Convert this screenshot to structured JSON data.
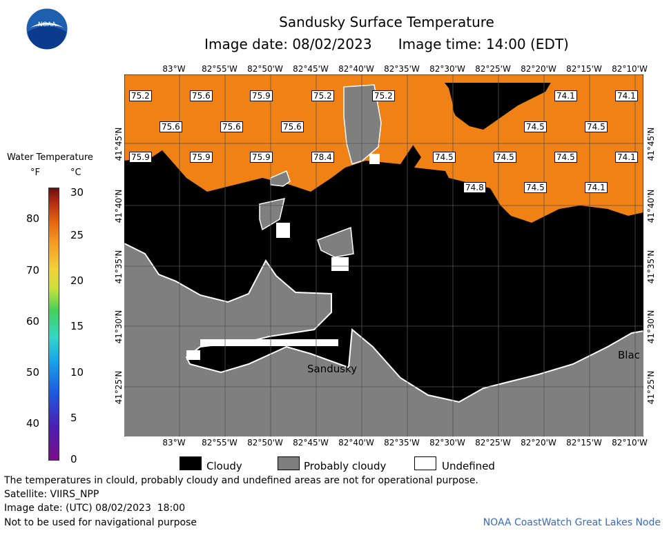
{
  "header": {
    "title": "Sandusky Surface Temperature",
    "subtitle": "Image date: 08/02/2023      Image time: 14:00 (EDT)",
    "logo_text": "NOAA"
  },
  "legend": {
    "title": "Water Temperature",
    "unit_f": "°F",
    "unit_c": "°C",
    "f_ticks": [
      "80",
      "70",
      "60",
      "50",
      "40"
    ],
    "c_ticks": [
      "30",
      "25",
      "20",
      "15",
      "10",
      "5",
      "0"
    ]
  },
  "axes": {
    "lon": [
      "83°W",
      "82°55'W",
      "82°50'W",
      "82°45'W",
      "82°40'W",
      "82°35'W",
      "82°30'W",
      "82°25'W",
      "82°20'W",
      "82°15'W",
      "82°10'W"
    ],
    "lat": [
      "41°45'N",
      "41°40'N",
      "41°35'N",
      "41°30'N",
      "41°25'N"
    ]
  },
  "temperatures": [
    "75.2",
    "75.6",
    "75.9",
    "75.2",
    "75.2",
    "74.1",
    "74.1",
    "75.6",
    "75.6",
    "75.6",
    "74.5",
    "74.5",
    "75.9",
    "75.9",
    "75.9",
    "78.4",
    "74.5",
    "74.5",
    "74.5",
    "74.1",
    "74.8",
    "74.5",
    "74.1"
  ],
  "places": {
    "sandusky": "Sandusky",
    "black": "Blac"
  },
  "key": {
    "cloudy": "Cloudy",
    "probably_cloudy": "Probably cloudy",
    "undefined": "Undefined"
  },
  "colors": {
    "water": "#f08114",
    "cloud": "#000000",
    "probably_cloudy": "#7f7f7f",
    "land": "#7f7f7f",
    "undefined": "#ffffff"
  },
  "footer": {
    "note": "The temperatures in clould, probably cloudy and undefined areas are not for operational purpose.",
    "satellite": "Satellite: VIIRS_NPP",
    "utc": "Image date: (UTC) 08/02/2023  18:00",
    "nav": "Not to be used for navigational purpose",
    "credit": "NOAA CoastWatch Great Lakes Node"
  }
}
